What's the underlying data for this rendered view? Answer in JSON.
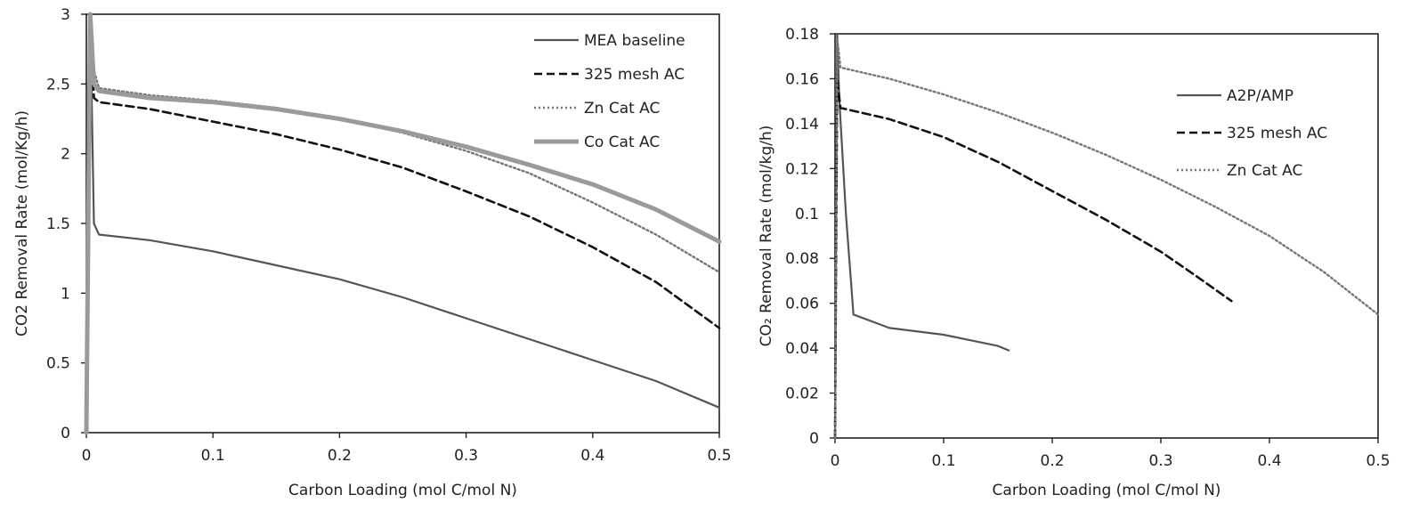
{
  "chart_data": [
    {
      "type": "line",
      "title": "",
      "xlabel": "Carbon Loading (mol C/mol N)",
      "ylabel": "CO2 Removal Rate (mol/Kg/h)",
      "xlim": [
        0,
        0.5
      ],
      "ylim": [
        0,
        3
      ],
      "xticks": [
        0,
        0.1,
        0.2,
        0.3,
        0.4,
        0.5
      ],
      "xtick_labels": [
        "0",
        "0.1",
        "0.2",
        "0.3",
        "0.4",
        "0.5"
      ],
      "yticks": [
        0,
        0.5,
        1,
        1.5,
        2,
        2.5,
        3
      ],
      "ytick_labels": [
        "0",
        "0.5",
        "1",
        "1.5",
        "2",
        "2.5",
        "3"
      ],
      "grid": false,
      "legend_position": "top-right",
      "series": [
        {
          "name": "MEA baseline",
          "style": "solid-thin",
          "color": "#555555",
          "x": [
            0,
            0.003,
            0.006,
            0.01,
            0.05,
            0.1,
            0.15,
            0.2,
            0.25,
            0.3,
            0.35,
            0.4,
            0.45,
            0.5
          ],
          "y": [
            0,
            3.0,
            1.5,
            1.42,
            1.38,
            1.3,
            1.2,
            1.1,
            0.97,
            0.82,
            0.67,
            0.52,
            0.37,
            0.18
          ]
        },
        {
          "name": "325 mesh AC",
          "style": "dashed",
          "color": "#111111",
          "x": [
            0,
            0.003,
            0.006,
            0.01,
            0.05,
            0.1,
            0.15,
            0.2,
            0.25,
            0.3,
            0.35,
            0.4,
            0.45,
            0.5
          ],
          "y": [
            0,
            3.0,
            2.4,
            2.37,
            2.32,
            2.23,
            2.14,
            2.03,
            1.9,
            1.73,
            1.55,
            1.33,
            1.08,
            0.75
          ]
        },
        {
          "name": "Zn Cat AC",
          "style": "dotted",
          "color": "#777777",
          "x": [
            0,
            0.003,
            0.006,
            0.01,
            0.05,
            0.1,
            0.15,
            0.2,
            0.25,
            0.3,
            0.35,
            0.4,
            0.45,
            0.5
          ],
          "y": [
            0,
            3.0,
            2.6,
            2.47,
            2.42,
            2.38,
            2.33,
            2.25,
            2.15,
            2.02,
            1.86,
            1.65,
            1.42,
            1.15
          ]
        },
        {
          "name": "Co Cat AC",
          "style": "solid-thick",
          "color": "#9a9a9a",
          "x": [
            0,
            0.003,
            0.006,
            0.01,
            0.05,
            0.1,
            0.15,
            0.2,
            0.25,
            0.3,
            0.35,
            0.4,
            0.45,
            0.5
          ],
          "y": [
            0,
            3.0,
            2.5,
            2.45,
            2.4,
            2.37,
            2.32,
            2.25,
            2.16,
            2.05,
            1.92,
            1.78,
            1.6,
            1.37
          ]
        }
      ]
    },
    {
      "type": "line",
      "title": "",
      "xlabel": "Carbon Loading (mol C/mol N)",
      "ylabel": "CO₂ Removal Rate (mol/kg/h)",
      "xlim": [
        0,
        0.5
      ],
      "ylim": [
        0,
        0.18
      ],
      "xticks": [
        0,
        0.1,
        0.2,
        0.3,
        0.4,
        0.5
      ],
      "xtick_labels": [
        "0",
        "0.1",
        "0.2",
        "0.3",
        "0.4",
        "0.5"
      ],
      "yticks": [
        0,
        0.02,
        0.04,
        0.06,
        0.08,
        0.1,
        0.12,
        0.14,
        0.16,
        0.18
      ],
      "ytick_labels": [
        "0",
        "0.02",
        "0.04",
        "0.06",
        "0.08",
        "0.1",
        "0.12",
        "0.14",
        "0.16",
        "0.18"
      ],
      "grid": false,
      "legend_position": "top-right",
      "series": [
        {
          "name": "A2P/AMP",
          "style": "solid-thin",
          "color": "#555555",
          "x": [
            0,
            0.002,
            0.004,
            0.01,
            0.017,
            0.05,
            0.1,
            0.15,
            0.16
          ],
          "y": [
            0,
            0.18,
            0.15,
            0.1,
            0.055,
            0.049,
            0.046,
            0.041,
            0.039
          ]
        },
        {
          "name": "325 mesh AC",
          "style": "dashed",
          "color": "#111111",
          "x": [
            0,
            0.002,
            0.005,
            0.05,
            0.1,
            0.15,
            0.2,
            0.25,
            0.3,
            0.33,
            0.365
          ],
          "y": [
            0,
            0.16,
            0.147,
            0.142,
            0.134,
            0.123,
            0.11,
            0.097,
            0.083,
            0.073,
            0.061
          ]
        },
        {
          "name": "Zn Cat AC",
          "style": "dotted",
          "color": "#777777",
          "x": [
            0,
            0.002,
            0.005,
            0.05,
            0.1,
            0.15,
            0.2,
            0.25,
            0.3,
            0.35,
            0.4,
            0.45,
            0.5
          ],
          "y": [
            0,
            0.178,
            0.165,
            0.16,
            0.153,
            0.145,
            0.136,
            0.126,
            0.115,
            0.103,
            0.09,
            0.074,
            0.055
          ]
        }
      ]
    }
  ]
}
